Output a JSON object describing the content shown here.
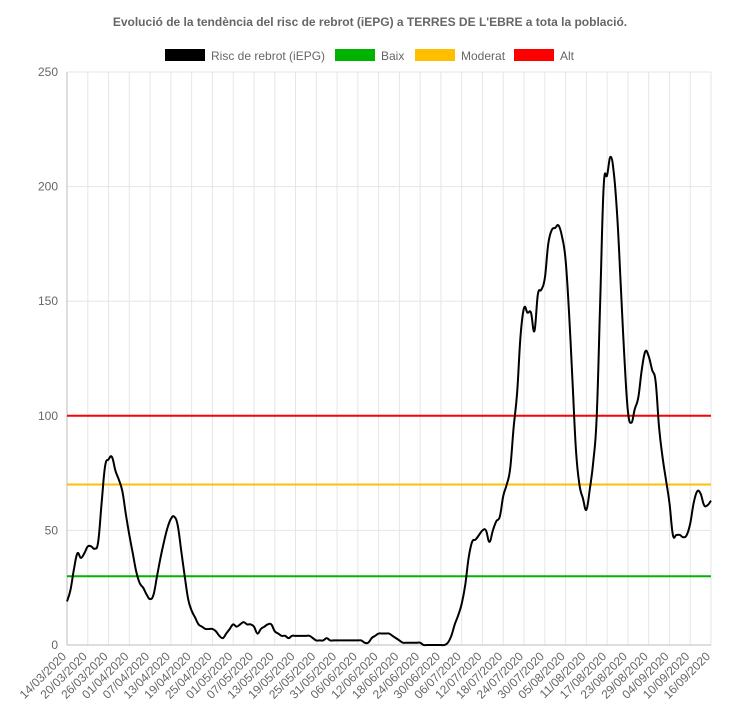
{
  "chart_data": {
    "type": "line",
    "title": "Evolució de la tendència del risc de rebrot (iEPG) a TERRES DE L'EBRE a tota la població.",
    "legend_position": "top",
    "grid": true,
    "ylim": [
      0,
      250
    ],
    "yticks": [
      0,
      50,
      100,
      150,
      200,
      250
    ],
    "x_start": "14/03/2020",
    "x_end": "16/09/2020",
    "x_tick_labels": [
      "14/03/2020",
      "20/03/2020",
      "26/03/2020",
      "01/04/2020",
      "07/04/2020",
      "13/04/2020",
      "19/04/2020",
      "25/04/2020",
      "01/05/2020",
      "07/05/2020",
      "13/05/2020",
      "19/05/2020",
      "25/05/2020",
      "31/05/2020",
      "06/06/2020",
      "12/06/2020",
      "18/06/2020",
      "24/06/2020",
      "30/06/2020",
      "06/07/2020",
      "12/07/2020",
      "18/07/2020",
      "24/07/2020",
      "30/07/2020",
      "05/08/2020",
      "11/08/2020",
      "17/08/2020",
      "23/08/2020",
      "29/08/2020",
      "04/09/2020",
      "10/09/2020",
      "16/09/2020"
    ],
    "series": [
      {
        "name": "Risc de rebrot (iEPG)",
        "color": "#000000",
        "points": [
          [
            "14/03/2020",
            19
          ],
          [
            "15/03/2020",
            24
          ],
          [
            "16/03/2020",
            33
          ],
          [
            "17/03/2020",
            40
          ],
          [
            "18/03/2020",
            38
          ],
          [
            "19/03/2020",
            40
          ],
          [
            "20/03/2020",
            43
          ],
          [
            "21/03/2020",
            43
          ],
          [
            "22/03/2020",
            42
          ],
          [
            "23/03/2020",
            45
          ],
          [
            "24/03/2020",
            62
          ],
          [
            "25/03/2020",
            78
          ],
          [
            "26/03/2020",
            81
          ],
          [
            "27/03/2020",
            82
          ],
          [
            "28/03/2020",
            76
          ],
          [
            "29/03/2020",
            72
          ],
          [
            "30/03/2020",
            67
          ],
          [
            "31/03/2020",
            57
          ],
          [
            "01/04/2020",
            48
          ],
          [
            "02/04/2020",
            40
          ],
          [
            "03/04/2020",
            32
          ],
          [
            "04/04/2020",
            27
          ],
          [
            "05/04/2020",
            25
          ],
          [
            "06/04/2020",
            22
          ],
          [
            "07/04/2020",
            20
          ],
          [
            "08/04/2020",
            22
          ],
          [
            "09/04/2020",
            30
          ],
          [
            "10/04/2020",
            38
          ],
          [
            "11/04/2020",
            45
          ],
          [
            "12/04/2020",
            51
          ],
          [
            "13/04/2020",
            55
          ],
          [
            "14/04/2020",
            56
          ],
          [
            "15/04/2020",
            52
          ],
          [
            "16/04/2020",
            41
          ],
          [
            "17/04/2020",
            30
          ],
          [
            "18/04/2020",
            20
          ],
          [
            "19/04/2020",
            15
          ],
          [
            "20/04/2020",
            12
          ],
          [
            "21/04/2020",
            9
          ],
          [
            "22/04/2020",
            8
          ],
          [
            "23/04/2020",
            7
          ],
          [
            "24/04/2020",
            7
          ],
          [
            "25/04/2020",
            7
          ],
          [
            "26/04/2020",
            6
          ],
          [
            "27/04/2020",
            4
          ],
          [
            "28/04/2020",
            3
          ],
          [
            "29/04/2020",
            5
          ],
          [
            "30/04/2020",
            7
          ],
          [
            "01/05/2020",
            9
          ],
          [
            "02/05/2020",
            8
          ],
          [
            "03/05/2020",
            9
          ],
          [
            "04/05/2020",
            10
          ],
          [
            "05/05/2020",
            9
          ],
          [
            "06/05/2020",
            9
          ],
          [
            "07/05/2020",
            8
          ],
          [
            "08/05/2020",
            5
          ],
          [
            "09/05/2020",
            7
          ],
          [
            "10/05/2020",
            8
          ],
          [
            "11/05/2020",
            9
          ],
          [
            "12/05/2020",
            9
          ],
          [
            "13/05/2020",
            6
          ],
          [
            "14/05/2020",
            5
          ],
          [
            "15/05/2020",
            4
          ],
          [
            "16/05/2020",
            4
          ],
          [
            "17/05/2020",
            3
          ],
          [
            "18/05/2020",
            4
          ],
          [
            "19/05/2020",
            4
          ],
          [
            "20/05/2020",
            4
          ],
          [
            "21/05/2020",
            4
          ],
          [
            "22/05/2020",
            4
          ],
          [
            "23/05/2020",
            4
          ],
          [
            "24/05/2020",
            3
          ],
          [
            "25/05/2020",
            2
          ],
          [
            "26/05/2020",
            2
          ],
          [
            "27/05/2020",
            2
          ],
          [
            "28/05/2020",
            3
          ],
          [
            "29/05/2020",
            2
          ],
          [
            "30/05/2020",
            2
          ],
          [
            "31/05/2020",
            2
          ],
          [
            "01/06/2020",
            2
          ],
          [
            "02/06/2020",
            2
          ],
          [
            "03/06/2020",
            2
          ],
          [
            "04/06/2020",
            2
          ],
          [
            "05/06/2020",
            2
          ],
          [
            "06/06/2020",
            2
          ],
          [
            "07/06/2020",
            2
          ],
          [
            "08/06/2020",
            1
          ],
          [
            "09/06/2020",
            1
          ],
          [
            "10/06/2020",
            3
          ],
          [
            "11/06/2020",
            4
          ],
          [
            "12/06/2020",
            5
          ],
          [
            "13/06/2020",
            5
          ],
          [
            "14/06/2020",
            5
          ],
          [
            "15/06/2020",
            5
          ],
          [
            "16/06/2020",
            4
          ],
          [
            "17/06/2020",
            3
          ],
          [
            "18/06/2020",
            2
          ],
          [
            "19/06/2020",
            1
          ],
          [
            "20/06/2020",
            1
          ],
          [
            "21/06/2020",
            1
          ],
          [
            "22/06/2020",
            1
          ],
          [
            "23/06/2020",
            1
          ],
          [
            "24/06/2020",
            1
          ],
          [
            "25/06/2020",
            0
          ],
          [
            "26/06/2020",
            0
          ],
          [
            "27/06/2020",
            0
          ],
          [
            "28/06/2020",
            0
          ],
          [
            "29/06/2020",
            0
          ],
          [
            "30/06/2020",
            0
          ],
          [
            "01/07/2020",
            0
          ],
          [
            "02/07/2020",
            1
          ],
          [
            "03/07/2020",
            4
          ],
          [
            "04/07/2020",
            9
          ],
          [
            "05/07/2020",
            13
          ],
          [
            "06/07/2020",
            18
          ],
          [
            "07/07/2020",
            26
          ],
          [
            "08/07/2020",
            38
          ],
          [
            "09/07/2020",
            45
          ],
          [
            "10/07/2020",
            46
          ],
          [
            "11/07/2020",
            48
          ],
          [
            "12/07/2020",
            50
          ],
          [
            "13/07/2020",
            50
          ],
          [
            "14/07/2020",
            45
          ],
          [
            "15/07/2020",
            50
          ],
          [
            "16/07/2020",
            54
          ],
          [
            "17/07/2020",
            56
          ],
          [
            "18/07/2020",
            65
          ],
          [
            "19/07/2020",
            70
          ],
          [
            "20/07/2020",
            77
          ],
          [
            "21/07/2020",
            95
          ],
          [
            "22/07/2020",
            110
          ],
          [
            "23/07/2020",
            135
          ],
          [
            "24/07/2020",
            147
          ],
          [
            "25/07/2020",
            145
          ],
          [
            "26/07/2020",
            145
          ],
          [
            "27/07/2020",
            137
          ],
          [
            "28/07/2020",
            153
          ],
          [
            "29/07/2020",
            155
          ],
          [
            "30/07/2020",
            160
          ],
          [
            "31/07/2020",
            175
          ],
          [
            "01/08/2020",
            181
          ],
          [
            "02/08/2020",
            182
          ],
          [
            "03/08/2020",
            183
          ],
          [
            "04/08/2020",
            178
          ],
          [
            "05/08/2020",
            168
          ],
          [
            "06/08/2020",
            145
          ],
          [
            "07/08/2020",
            115
          ],
          [
            "08/08/2020",
            85
          ],
          [
            "09/08/2020",
            70
          ],
          [
            "10/08/2020",
            64
          ],
          [
            "11/08/2020",
            59
          ],
          [
            "12/08/2020",
            68
          ],
          [
            "13/08/2020",
            80
          ],
          [
            "14/08/2020",
            100
          ],
          [
            "15/08/2020",
            150
          ],
          [
            "16/08/2020",
            200
          ],
          [
            "17/08/2020",
            205
          ],
          [
            "18/08/2020",
            213
          ],
          [
            "19/08/2020",
            205
          ],
          [
            "20/08/2020",
            185
          ],
          [
            "21/08/2020",
            155
          ],
          [
            "22/08/2020",
            125
          ],
          [
            "23/08/2020",
            102
          ],
          [
            "24/08/2020",
            97
          ],
          [
            "25/08/2020",
            103
          ],
          [
            "26/08/2020",
            108
          ],
          [
            "27/08/2020",
            120
          ],
          [
            "28/08/2020",
            128
          ],
          [
            "29/08/2020",
            126
          ],
          [
            "30/08/2020",
            120
          ],
          [
            "31/08/2020",
            115
          ],
          [
            "01/09/2020",
            95
          ],
          [
            "02/09/2020",
            82
          ],
          [
            "03/09/2020",
            72
          ],
          [
            "04/09/2020",
            62
          ],
          [
            "05/09/2020",
            48
          ],
          [
            "06/09/2020",
            48
          ],
          [
            "07/09/2020",
            48
          ],
          [
            "08/09/2020",
            47
          ],
          [
            "09/09/2020",
            48
          ],
          [
            "10/09/2020",
            53
          ],
          [
            "11/09/2020",
            62
          ],
          [
            "12/09/2020",
            67
          ],
          [
            "13/09/2020",
            66
          ],
          [
            "14/09/2020",
            61
          ],
          [
            "15/09/2020",
            61
          ],
          [
            "16/09/2020",
            63
          ]
        ]
      },
      {
        "name": "Baix",
        "color": "#00b300",
        "constant": 30
      },
      {
        "name": "Moderat",
        "color": "#ffbf00",
        "constant": 70
      },
      {
        "name": "Alt",
        "color": "#ff0000",
        "constant": 100
      }
    ]
  }
}
